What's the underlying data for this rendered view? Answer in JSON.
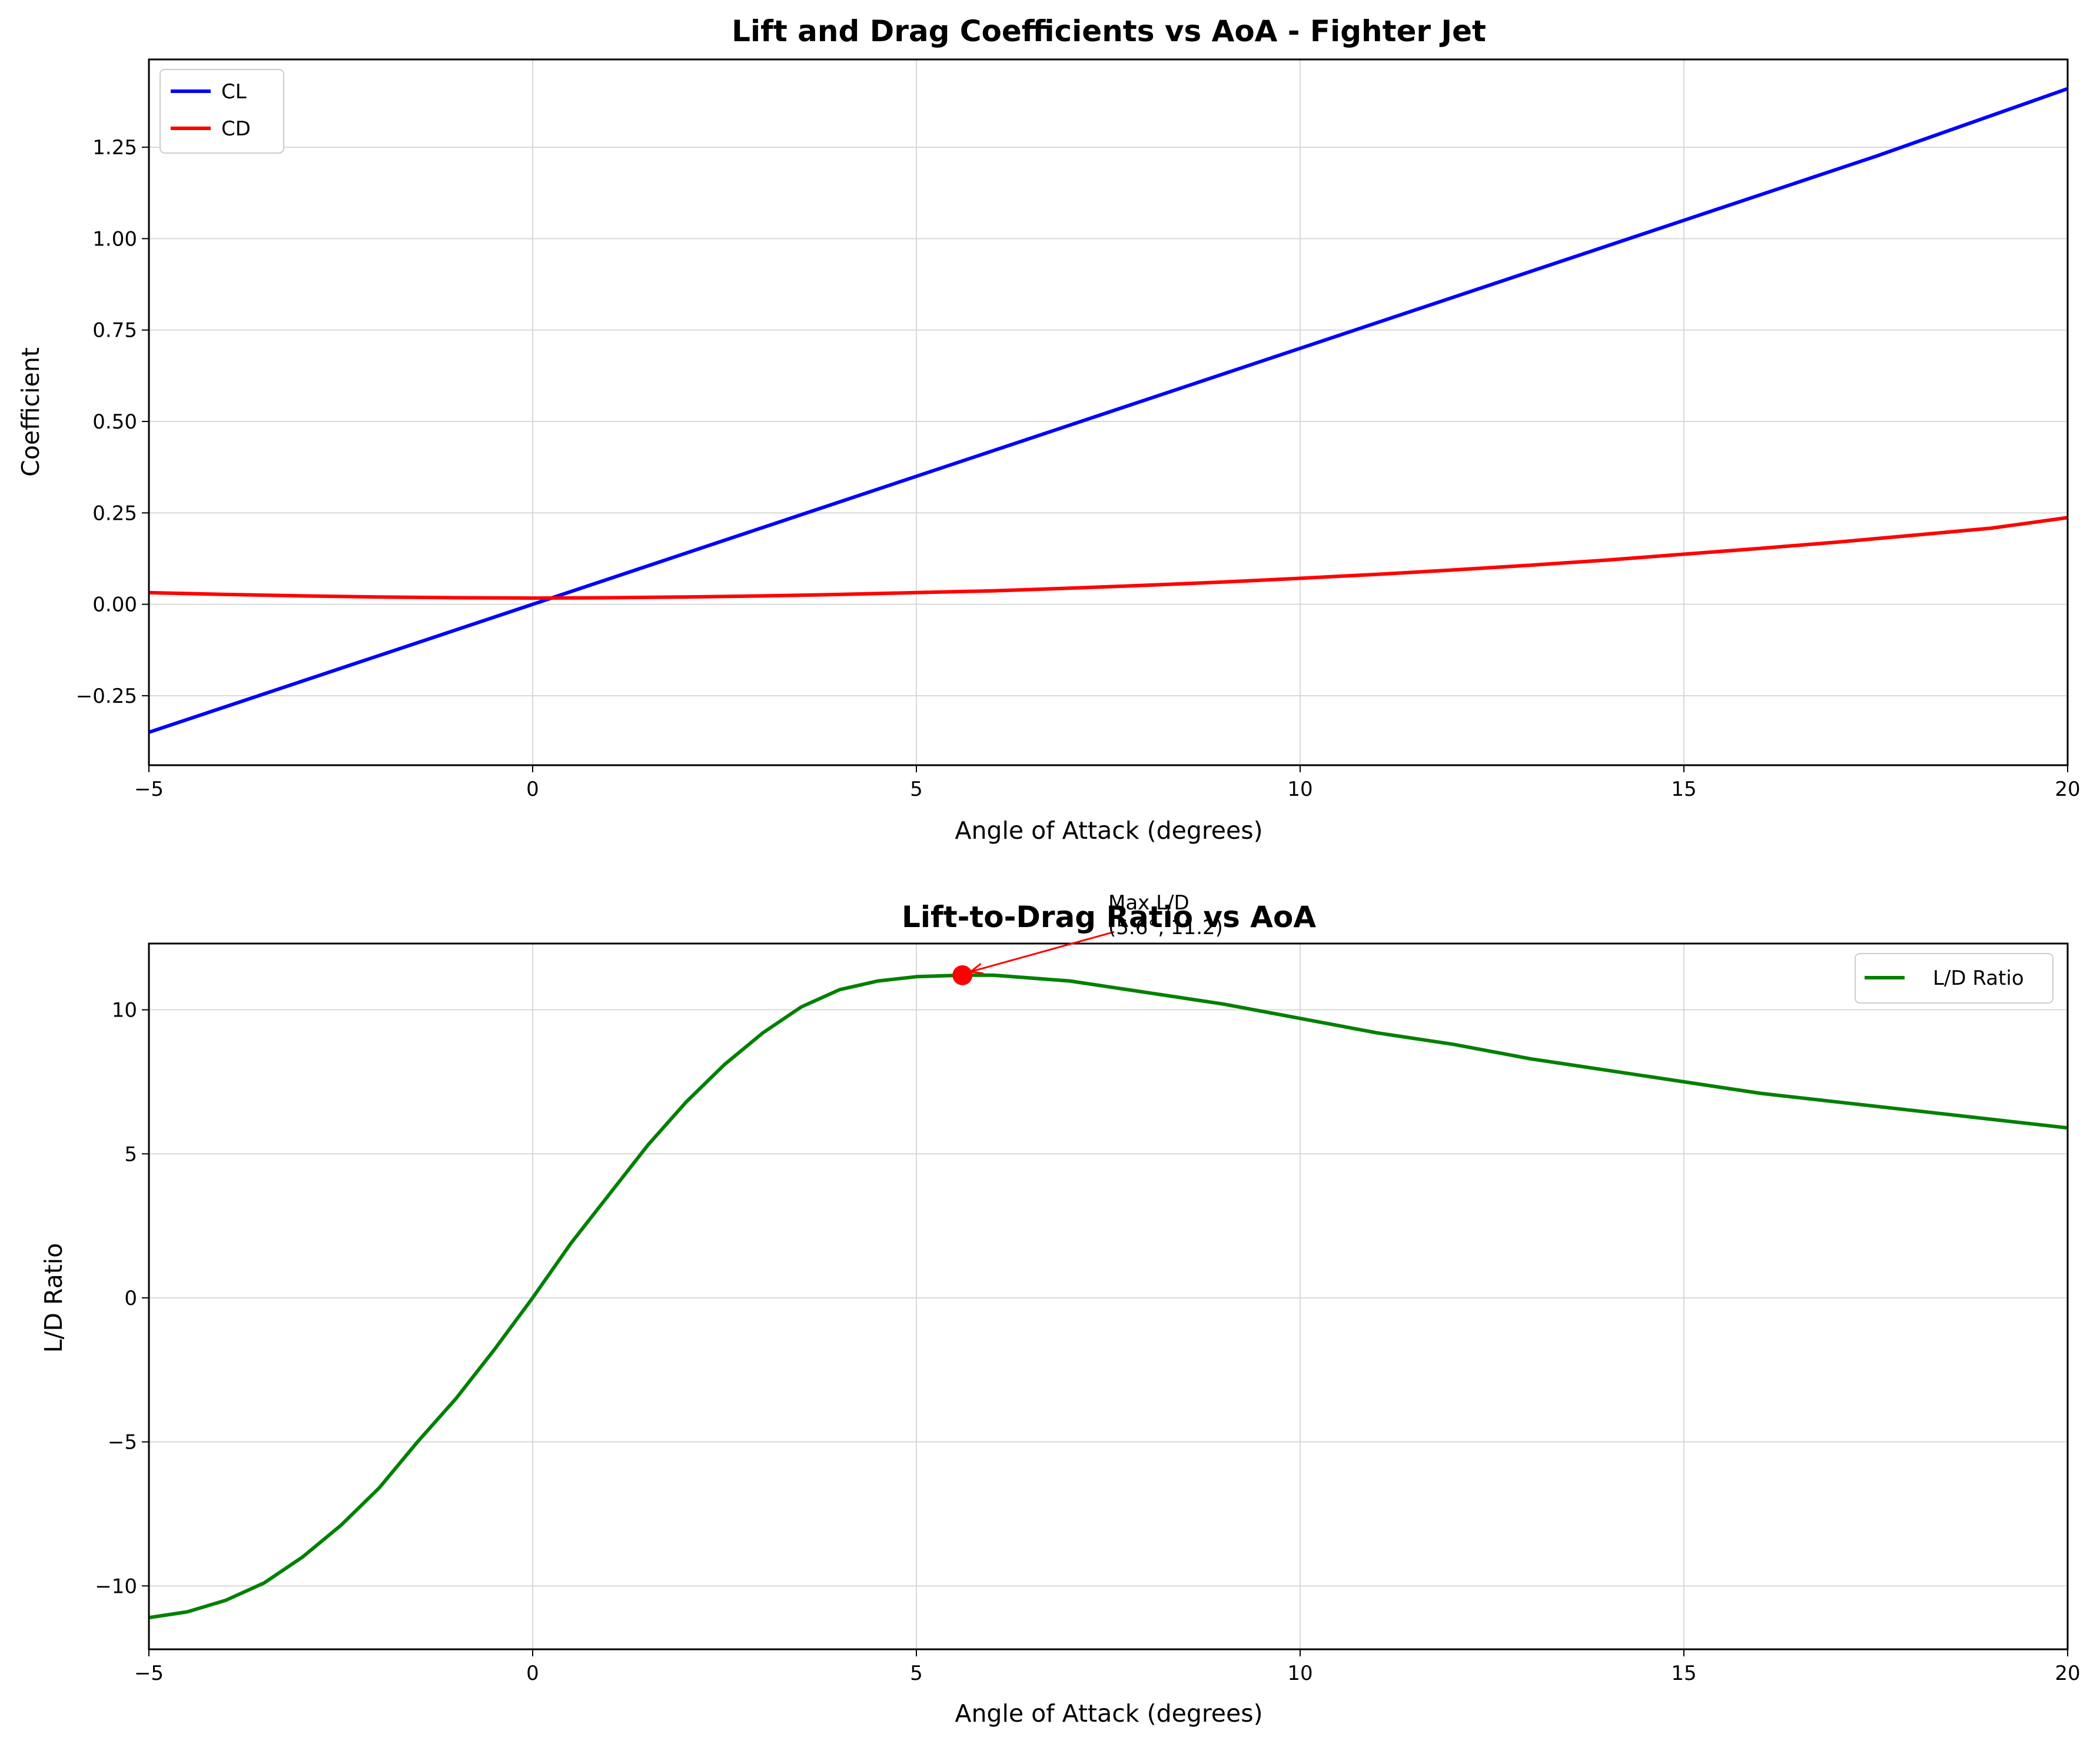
{
  "colors": {
    "cl": "#0000ff",
    "cd": "#ff0000",
    "ld": "#008000",
    "marker": "#ff0000",
    "grid": "#d9d9d9"
  },
  "chart_data": [
    {
      "type": "line",
      "title": "Lift and Drag Coefficients vs AoA - Fighter Jet",
      "xlabel": "Angle of Attack (degrees)",
      "ylabel": "Coefficient",
      "xlim": [
        -5,
        20
      ],
      "ylim": [
        -0.44,
        1.49
      ],
      "xticks": [
        -5,
        0,
        5,
        10,
        15,
        20
      ],
      "xtick_labels": [
        "−5",
        "0",
        "5",
        "10",
        "15",
        "20"
      ],
      "yticks": [
        -0.25,
        0,
        0.25,
        0.5,
        0.75,
        1.0,
        1.25
      ],
      "ytick_labels": [
        "−0.25",
        "0.00",
        "0.25",
        "0.50",
        "0.75",
        "1.00",
        "1.25"
      ],
      "grid": true,
      "legend_position": "upper left",
      "series": [
        {
          "name": "CL",
          "color": "#0000ff",
          "x": [
            -5,
            -2.5,
            0,
            2.5,
            5,
            7.5,
            10,
            12.5,
            15,
            17.5,
            20
          ],
          "y": [
            -0.35,
            -0.175,
            0.0,
            0.175,
            0.35,
            0.525,
            0.7,
            0.875,
            1.05,
            1.225,
            1.41
          ]
        },
        {
          "name": "CD",
          "color": "#ff0000",
          "x": [
            -5,
            -4,
            -3,
            -2,
            -1,
            0,
            1,
            2,
            3,
            4,
            5,
            6,
            7,
            8,
            9,
            10,
            11,
            12,
            13,
            14,
            15,
            16,
            17,
            18,
            19,
            20
          ],
          "y": [
            0.032,
            0.027,
            0.023,
            0.02,
            0.018,
            0.017,
            0.018,
            0.02,
            0.023,
            0.027,
            0.032,
            0.037,
            0.044,
            0.052,
            0.061,
            0.071,
            0.082,
            0.094,
            0.107,
            0.121,
            0.137,
            0.153,
            0.17,
            0.189,
            0.208,
            0.237
          ]
        }
      ]
    },
    {
      "type": "line",
      "title": "Lift-to-Drag Ratio vs AoA",
      "xlabel": "Angle of Attack (degrees)",
      "ylabel": "L/D Ratio",
      "xlim": [
        -5,
        20
      ],
      "ylim": [
        -12.2,
        12.3
      ],
      "xticks": [
        -5,
        0,
        5,
        10,
        15,
        20
      ],
      "xtick_labels": [
        "−5",
        "0",
        "5",
        "10",
        "15",
        "20"
      ],
      "yticks": [
        -10,
        -5,
        0,
        5,
        10
      ],
      "ytick_labels": [
        "−10",
        "−5",
        "0",
        "5",
        "10"
      ],
      "grid": true,
      "legend_position": "upper right",
      "series": [
        {
          "name": "L/D Ratio",
          "color": "#008000",
          "x": [
            -5,
            -4.5,
            -4,
            -3.5,
            -3,
            -2.5,
            -2,
            -1.5,
            -1,
            -0.5,
            0,
            0.5,
            1,
            1.5,
            2,
            2.5,
            3,
            3.5,
            4,
            4.5,
            5,
            5.6,
            6,
            7,
            8,
            9,
            10,
            11,
            12,
            13,
            14,
            15,
            16,
            17,
            18,
            19,
            20
          ],
          "y": [
            -11.1,
            -10.9,
            -10.5,
            -9.9,
            -9.0,
            -7.9,
            -6.6,
            -5.0,
            -3.5,
            -1.8,
            0.0,
            1.9,
            3.6,
            5.3,
            6.8,
            8.1,
            9.2,
            10.1,
            10.7,
            11.0,
            11.15,
            11.2,
            11.2,
            11.0,
            10.6,
            10.2,
            9.7,
            9.2,
            8.8,
            8.3,
            7.9,
            7.5,
            7.1,
            6.8,
            6.5,
            6.2,
            5.9
          ]
        }
      ],
      "annotations": [
        {
          "text_lines": [
            "Max L/D",
            "(5.6°, 11.2)"
          ],
          "point": [
            5.6,
            11.2
          ],
          "text_at": [
            7.5,
            13.4
          ]
        }
      ]
    }
  ]
}
